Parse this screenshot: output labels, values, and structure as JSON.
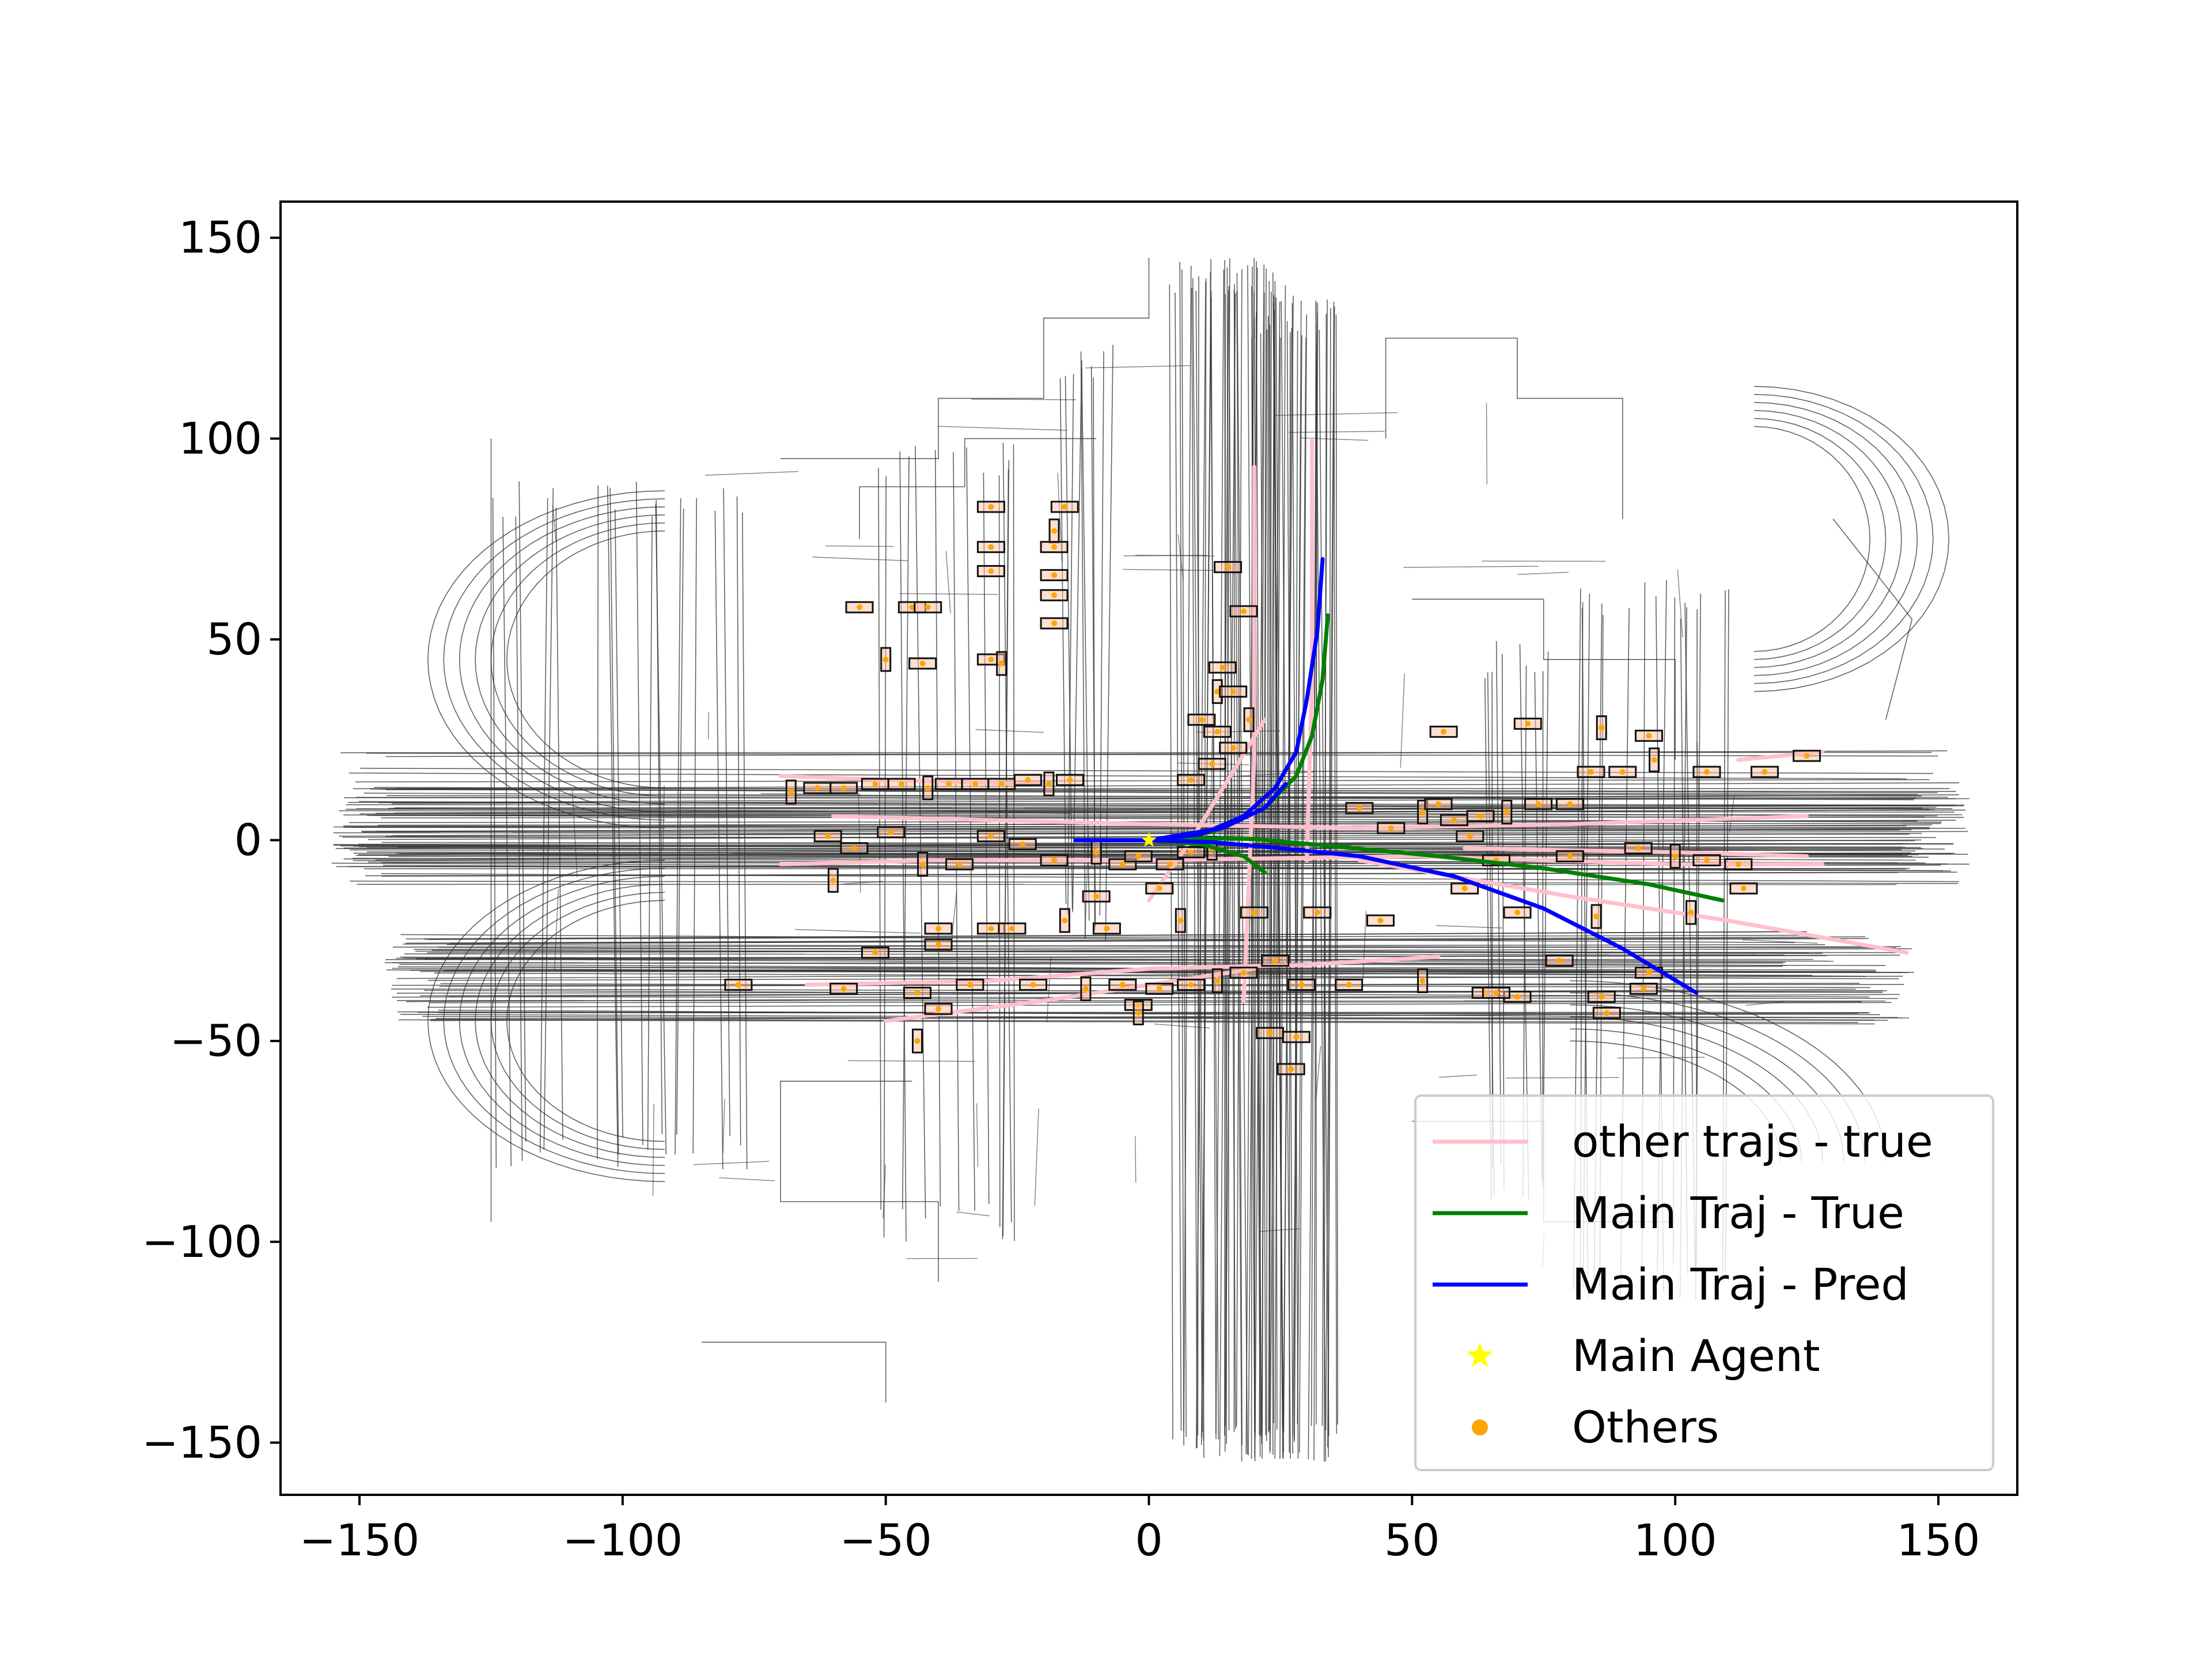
{
  "chart_data": {
    "type": "scatter",
    "title": "",
    "xlabel": "",
    "ylabel": "",
    "xlim": [
      -165,
      165
    ],
    "ylim": [
      -163,
      159
    ],
    "x_ticks": [
      -150,
      -100,
      -50,
      0,
      50,
      100,
      150
    ],
    "y_ticks": [
      150,
      100,
      50,
      0,
      -50,
      -100,
      -150
    ],
    "x_tick_labels": [
      "−150",
      "−100",
      "−50",
      "0",
      "50",
      "100",
      "150"
    ],
    "y_tick_labels": [
      "150",
      "100",
      "50",
      "0",
      "−50",
      "−100",
      "−150"
    ],
    "grid": false,
    "legend_position": "lower-right",
    "legend": [
      {
        "label": "other trajs - true",
        "color": "#ffc0cb",
        "marker": "line"
      },
      {
        "label": "Main Traj - True",
        "color": "#008000",
        "marker": "line"
      },
      {
        "label": "Main Traj - Pred",
        "color": "#0000ff",
        "marker": "line"
      },
      {
        "label": "Main Agent",
        "color": "#ffff00",
        "marker": "star"
      },
      {
        "label": "Others",
        "color": "#ffa500",
        "marker": "circle"
      }
    ],
    "series": [
      {
        "name": "Main Traj - True",
        "color": "#008000",
        "paths": [
          [
            [
              -12,
              0
            ],
            [
              0,
              0
            ],
            [
              10,
              0.5
            ],
            [
              20,
              0.3
            ],
            [
              35,
              -1.5
            ],
            [
              55,
              -4
            ],
            [
              75,
              -7
            ],
            [
              95,
              -11
            ],
            [
              109,
              -15
            ]
          ],
          [
            [
              0,
              0
            ],
            [
              12,
              2
            ],
            [
              22,
              8
            ],
            [
              28,
              16
            ],
            [
              31,
              26
            ],
            [
              33,
              40
            ],
            [
              34,
              56
            ]
          ],
          [
            [
              0,
              0
            ],
            [
              10,
              -1
            ],
            [
              18,
              -4
            ],
            [
              22,
              -8
            ]
          ]
        ]
      },
      {
        "name": "Main Traj - Pred",
        "color": "#0000ff",
        "paths": [
          [
            [
              -14,
              0
            ],
            [
              0,
              0
            ],
            [
              12,
              -0.5
            ],
            [
              25,
              -2
            ],
            [
              40,
              -4
            ],
            [
              58,
              -9
            ],
            [
              75,
              -17
            ],
            [
              90,
              -27
            ],
            [
              104,
              -38
            ]
          ],
          [
            [
              0,
              0
            ],
            [
              10,
              1.5
            ],
            [
              18,
              6
            ],
            [
              24,
              13
            ],
            [
              28,
              22
            ],
            [
              30,
              35
            ],
            [
              32,
              52
            ],
            [
              33,
              70
            ]
          ],
          [
            [
              0,
              0
            ],
            [
              14,
              3
            ],
            [
              22,
              8
            ],
            [
              26,
              14
            ]
          ]
        ]
      },
      {
        "name": "other trajs - true",
        "color": "#ffc0cb",
        "paths": [
          [
            [
              -60,
              6
            ],
            [
              -30,
              5
            ],
            [
              0,
              4
            ],
            [
              40,
              3
            ],
            [
              80,
              4
            ],
            [
              125,
              6
            ]
          ],
          [
            [
              -70,
              -6
            ],
            [
              -40,
              -5
            ],
            [
              0,
              -5
            ],
            [
              50,
              -4
            ],
            [
              100,
              -6
            ],
            [
              128,
              -6
            ]
          ],
          [
            [
              -65,
              -36
            ],
            [
              -30,
              -35
            ],
            [
              0,
              -32
            ],
            [
              30,
              -31
            ],
            [
              55,
              -29
            ]
          ],
          [
            [
              -50,
              -45
            ],
            [
              -20,
              -40
            ],
            [
              20,
              -32
            ]
          ],
          [
            [
              40,
              -5
            ],
            [
              80,
              -14
            ],
            [
              110,
              -20
            ],
            [
              144,
              -28
            ]
          ],
          [
            [
              18,
              -40
            ],
            [
              19,
              -10
            ],
            [
              20,
              20
            ],
            [
              20,
              60
            ],
            [
              20,
              93
            ]
          ],
          [
            [
              30,
              -5
            ],
            [
              31,
              40
            ],
            [
              31,
              100
            ]
          ],
          [
            [
              -20,
              14
            ],
            [
              -50,
              15
            ],
            [
              -70,
              16
            ]
          ],
          [
            [
              60,
              -2
            ],
            [
              100,
              -3
            ],
            [
              125,
              -4
            ]
          ],
          [
            [
              112,
              20
            ],
            [
              128,
              22
            ]
          ],
          [
            [
              0,
              -15
            ],
            [
              8,
              0
            ],
            [
              15,
              15
            ],
            [
              22,
              30
            ]
          ]
        ]
      },
      {
        "name": "Main Agent",
        "color": "#ffff00",
        "points": [
          [
            0,
            0
          ]
        ]
      },
      {
        "name": "Others",
        "color": "#ffa500",
        "points": [
          [
            -68,
            12
          ],
          [
            -63,
            13
          ],
          [
            -58,
            13
          ],
          [
            -52,
            14
          ],
          [
            -47,
            14
          ],
          [
            -42,
            13
          ],
          [
            -38,
            14
          ],
          [
            -33,
            14
          ],
          [
            -28,
            14
          ],
          [
            -23,
            15
          ],
          [
            -19,
            14
          ],
          [
            -15,
            15
          ],
          [
            -61,
            1
          ],
          [
            -56,
            -2
          ],
          [
            -49,
            2
          ],
          [
            -43,
            -6
          ],
          [
            -36,
            -6
          ],
          [
            -30,
            1
          ],
          [
            -24,
            -1
          ],
          [
            -18,
            -5
          ],
          [
            -10,
            -3
          ],
          [
            -5,
            -6
          ],
          [
            -2,
            -4
          ],
          [
            4,
            -6
          ],
          [
            8,
            -3
          ],
          [
            12,
            -2
          ],
          [
            -58,
            -37
          ],
          [
            -44,
            -38
          ],
          [
            -34,
            -36
          ],
          [
            -22,
            -36
          ],
          [
            -12,
            -37
          ],
          [
            -5,
            -36
          ],
          [
            -2,
            -41
          ],
          [
            2,
            -37
          ],
          [
            8,
            -36
          ],
          [
            13,
            -35
          ],
          [
            18,
            -33
          ],
          [
            24,
            -30
          ],
          [
            29,
            -36
          ],
          [
            38,
            -36
          ],
          [
            52,
            -35
          ],
          [
            64,
            -38
          ],
          [
            70,
            -39
          ],
          [
            86,
            -39
          ],
          [
            94,
            -37
          ],
          [
            -44,
            -50
          ],
          [
            -40,
            -42
          ],
          [
            -40,
            -22
          ],
          [
            -40,
            -26
          ],
          [
            -30,
            -22
          ],
          [
            -16,
            -20
          ],
          [
            -8,
            -22
          ],
          [
            23,
            -48
          ],
          [
            28,
            -49
          ],
          [
            27,
            -57
          ],
          [
            -2,
            -43
          ],
          [
            -55,
            58
          ],
          [
            -45,
            58
          ],
          [
            -42,
            58
          ],
          [
            -30,
            45
          ],
          [
            -28,
            44
          ],
          [
            -30,
            67
          ],
          [
            -30,
            73
          ],
          [
            -30,
            83
          ],
          [
            -16,
            83
          ],
          [
            -18,
            77
          ],
          [
            -18,
            73
          ],
          [
            -18,
            66
          ],
          [
            -18,
            61
          ],
          [
            -18,
            54
          ],
          [
            -50,
            45
          ],
          [
            -43,
            44
          ],
          [
            15,
            68
          ],
          [
            18,
            57
          ],
          [
            14,
            43
          ],
          [
            13,
            37
          ],
          [
            16,
            37
          ],
          [
            10,
            30
          ],
          [
            13,
            27
          ],
          [
            16,
            23
          ],
          [
            19,
            30
          ],
          [
            12,
            19
          ],
          [
            8,
            15
          ],
          [
            40,
            8
          ],
          [
            46,
            3
          ],
          [
            52,
            7
          ],
          [
            55,
            9
          ],
          [
            58,
            5
          ],
          [
            61,
            1
          ],
          [
            63,
            6
          ],
          [
            68,
            7
          ],
          [
            74,
            9
          ],
          [
            80,
            9
          ],
          [
            84,
            17
          ],
          [
            90,
            17
          ],
          [
            96,
            20
          ],
          [
            106,
            17
          ],
          [
            117,
            17
          ],
          [
            125,
            21
          ],
          [
            95,
            26
          ],
          [
            86,
            28
          ],
          [
            72,
            29
          ],
          [
            56,
            27
          ],
          [
            78,
            -30
          ],
          [
            95,
            -33
          ],
          [
            103,
            -18
          ],
          [
            113,
            -12
          ],
          [
            87,
            -43
          ],
          [
            66,
            -38
          ],
          [
            -78,
            -36
          ],
          [
            -60,
            -10
          ],
          [
            -52,
            -28
          ],
          [
            -26,
            -22
          ],
          [
            -10,
            -14
          ],
          [
            2,
            -12
          ],
          [
            6,
            -20
          ],
          [
            20,
            -18
          ],
          [
            32,
            -18
          ],
          [
            44,
            -20
          ],
          [
            60,
            -12
          ],
          [
            85,
            -19
          ],
          [
            70,
            -18
          ],
          [
            66,
            -5
          ],
          [
            80,
            -4
          ],
          [
            93,
            -2
          ],
          [
            100,
            -4
          ],
          [
            106,
            -5
          ],
          [
            112,
            -6
          ]
        ]
      }
    ],
    "lane_map": {
      "color": "#2f2f2f",
      "description": "road map polylines"
    }
  }
}
